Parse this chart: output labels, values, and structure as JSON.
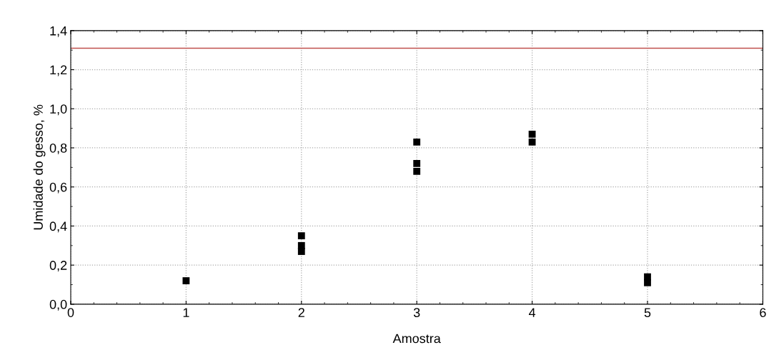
{
  "chart_data": {
    "type": "scatter",
    "xlabel": "Amostra",
    "ylabel": "Umidade do gesso, %",
    "series": [
      {
        "color": "#000000",
        "x": [
          1,
          2,
          2,
          2,
          3,
          3,
          3,
          4,
          4,
          5,
          5
        ],
        "values": [
          0.12,
          0.35,
          0.3,
          0.27,
          0.83,
          0.72,
          0.68,
          0.87,
          0.83,
          0.14,
          0.11
        ]
      }
    ],
    "xlim": [
      0,
      6
    ],
    "xticks": [
      0,
      1,
      2,
      3,
      4,
      5,
      6
    ],
    "ylim": [
      0,
      1.4
    ],
    "yticks": [
      {
        "value": 0,
        "label": "0,0"
      },
      {
        "value": 0.2,
        "label": "0,2"
      },
      {
        "value": 0.4,
        "label": "0,4"
      },
      {
        "value": 0.6,
        "label": "0,6"
      },
      {
        "value": 0.8,
        "label": "0,8"
      },
      {
        "value": 1.0,
        "label": "1,0"
      },
      {
        "value": 1.2,
        "label": "1,2"
      },
      {
        "value": 1.4,
        "label": "1,4"
      }
    ],
    "ref_lines": [
      {
        "axis": "y",
        "value": 1.31,
        "color": "#c0504d"
      }
    ],
    "grid": true,
    "marker": "square"
  }
}
